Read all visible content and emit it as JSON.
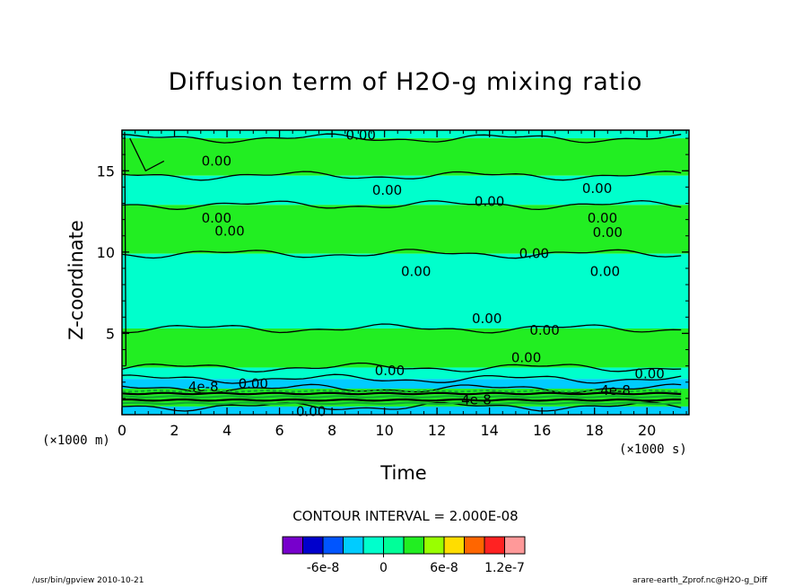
{
  "chart_data": {
    "type": "heatmap",
    "title": "Diffusion term of H2O-g mixing ratio",
    "xlabel": "Time",
    "ylabel": "Z-coordinate",
    "x_unit": "(×1000 s)",
    "y_unit": "(×1000 m)",
    "xlim": [
      0,
      21.6
    ],
    "ylim": [
      0,
      17.5
    ],
    "x_ticks": [
      0,
      2,
      4,
      6,
      8,
      10,
      12,
      14,
      16,
      18,
      20
    ],
    "y_ticks": [
      5,
      10,
      15
    ],
    "contour_interval_label": "CONTOUR INTERVAL = 2.000E-08",
    "contour_labels": [
      {
        "text": "0.00",
        "x": 9.1,
        "z": 17.2
      },
      {
        "text": "0.00",
        "x": 3.6,
        "z": 15.6
      },
      {
        "text": "0.00",
        "x": 10.1,
        "z": 13.8
      },
      {
        "text": "0.00",
        "x": 18.1,
        "z": 13.9
      },
      {
        "text": "0.00",
        "x": 14.0,
        "z": 13.1
      },
      {
        "text": "0.00",
        "x": 3.6,
        "z": 12.1
      },
      {
        "text": "0.00",
        "x": 18.3,
        "z": 12.1
      },
      {
        "text": "0.00",
        "x": 4.1,
        "z": 11.3
      },
      {
        "text": "0.00",
        "x": 18.5,
        "z": 11.2
      },
      {
        "text": "0.00",
        "x": 15.7,
        "z": 9.9
      },
      {
        "text": "0.00",
        "x": 11.2,
        "z": 8.8
      },
      {
        "text": "0.00",
        "x": 18.4,
        "z": 8.8
      },
      {
        "text": "0.00",
        "x": 13.9,
        "z": 5.9
      },
      {
        "text": "0.00",
        "x": 16.1,
        "z": 5.2
      },
      {
        "text": "0.00",
        "x": 15.4,
        "z": 3.5
      },
      {
        "text": "0.00",
        "x": 10.2,
        "z": 2.7
      },
      {
        "text": "0.00",
        "x": 20.1,
        "z": 2.5
      },
      {
        "text": "0.00",
        "x": 5.0,
        "z": 1.9
      },
      {
        "text": "4e-8",
        "x": 3.1,
        "z": 1.7
      },
      {
        "text": "4e-8",
        "x": 18.8,
        "z": 1.5
      },
      {
        "text": "4e-8",
        "x": 13.5,
        "z": 0.9
      },
      {
        "text": "0.00",
        "x": 7.2,
        "z": 0.2
      }
    ],
    "color_scale": {
      "colors": [
        "#7700cc",
        "#0000cc",
        "#0055ff",
        "#00ccff",
        "#00ffcc",
        "#00ff99",
        "#22ee22",
        "#99ff00",
        "#ffdd00",
        "#ff6600",
        "#ff2222",
        "#ff9999"
      ],
      "tick_labels": [
        "-6e-8",
        "0",
        "6e-8",
        "1.2e-7"
      ]
    },
    "bands": [
      {
        "z0": 17.5,
        "z1": 17.0,
        "color": "#00ffcc"
      },
      {
        "z0": 17.0,
        "z1": 14.7,
        "color": "#22ee22"
      },
      {
        "z0": 14.7,
        "z1": 12.9,
        "color": "#00ffcc"
      },
      {
        "z0": 12.9,
        "z1": 9.9,
        "color": "#22ee22"
      },
      {
        "z0": 9.9,
        "z1": 5.3,
        "color": "#00ffcc"
      },
      {
        "z0": 5.3,
        "z1": 2.9,
        "color": "#22ee22"
      },
      {
        "z0": 2.9,
        "z1": 2.2,
        "color": "#00ffcc"
      },
      {
        "z0": 2.2,
        "z1": 1.6,
        "color": "#00ccff"
      },
      {
        "z0": 1.6,
        "z1": 0.5,
        "color": "#22ee22"
      },
      {
        "z0": 0.5,
        "z1": 0.0,
        "color": "#00ccff"
      }
    ]
  },
  "footer": {
    "left": "/usr/bin/gpview   2010-10-21",
    "right": "arare-earth_Zprof.nc@H2O-g_Diff"
  }
}
